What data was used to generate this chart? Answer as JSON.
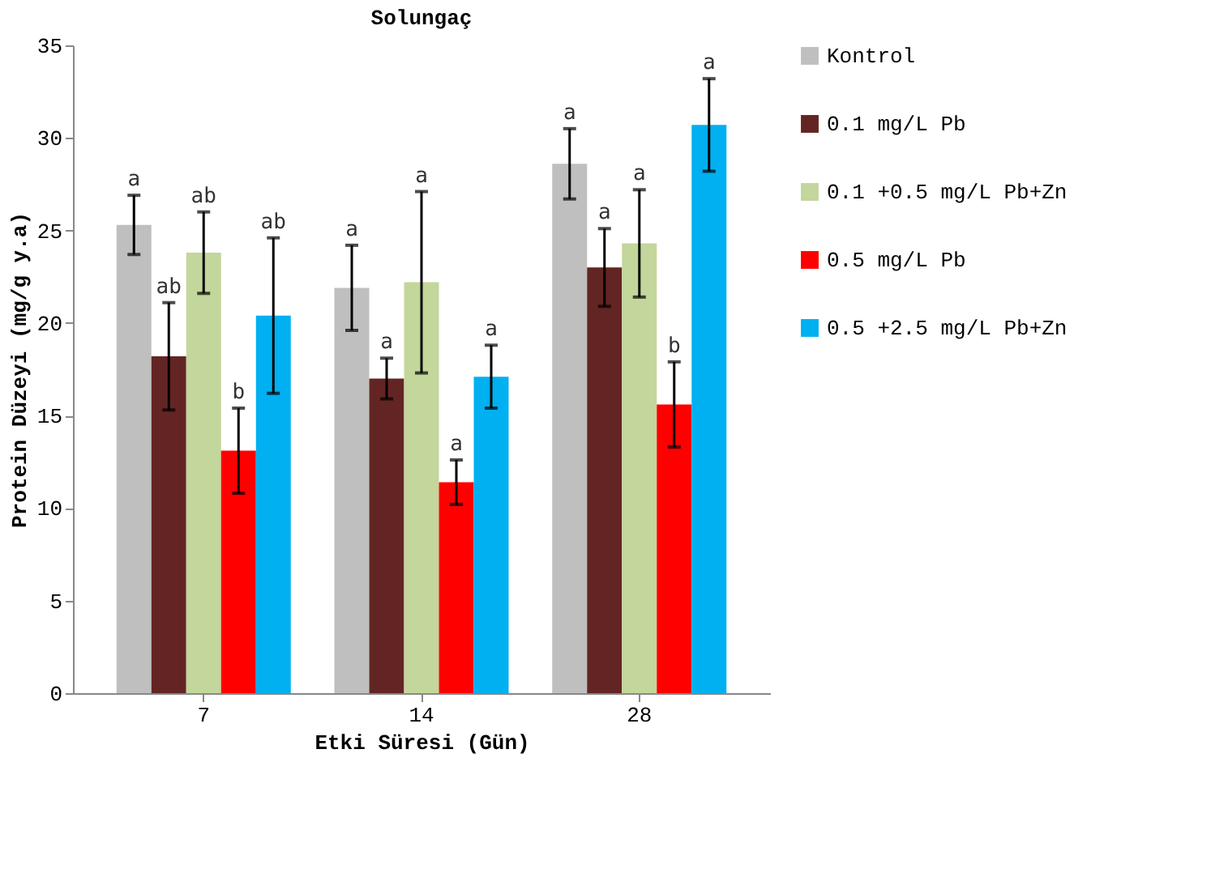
{
  "chart_data": {
    "type": "bar",
    "title": "Solungaç",
    "xlabel": "Etki Süresi (Gün)",
    "ylabel": "Protein Düzeyi (mg/g y.a)",
    "categories": [
      "7",
      "14",
      "28"
    ],
    "series": [
      {
        "name": "Kontrol",
        "color": "#bfbfbf",
        "values": [
          25.3,
          21.9,
          28.6
        ],
        "errors": [
          1.6,
          2.3,
          1.9
        ]
      },
      {
        "name": "0.1 mg/L Pb",
        "color": "#632523",
        "values": [
          18.2,
          17.0,
          23.0
        ],
        "errors": [
          2.9,
          1.1,
          2.1
        ]
      },
      {
        "name": "0.1 +0.5 mg/L Pb+Zn",
        "color": "#c3d69b",
        "values": [
          23.8,
          22.2,
          24.3
        ],
        "errors": [
          2.2,
          4.9,
          2.9
        ]
      },
      {
        "name": "0.5 mg/L Pb",
        "color": "#ff0000",
        "values": [
          13.1,
          11.4,
          15.6
        ],
        "errors": [
          2.3,
          1.2,
          2.3
        ]
      },
      {
        "name": "0.5 +2.5 mg/L Pb+Zn",
        "color": "#00b0f0",
        "values": [
          20.4,
          17.1,
          30.7
        ],
        "errors": [
          4.2,
          1.7,
          2.5
        ]
      }
    ],
    "annotations": [
      "a",
      "ab",
      "ab",
      "b",
      "ab",
      "a",
      "a",
      "a",
      "a",
      "a",
      "a",
      "a",
      "a",
      "b",
      "a"
    ],
    "ylim": [
      0,
      35
    ],
    "yticks": [
      0,
      5,
      10,
      15,
      20,
      25,
      30,
      35
    ],
    "grid": false,
    "legend": "right"
  }
}
